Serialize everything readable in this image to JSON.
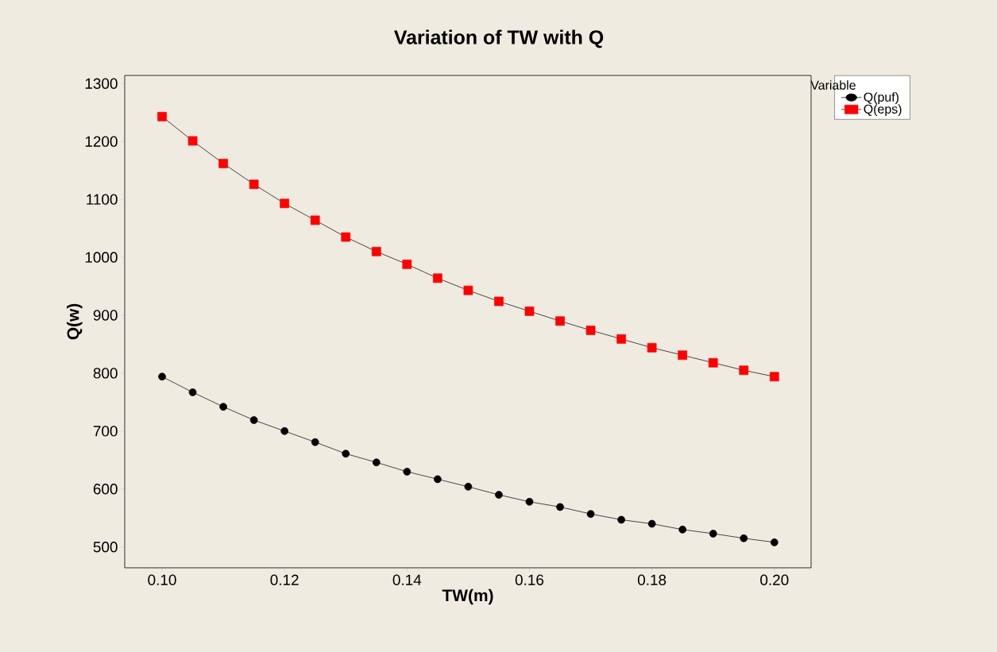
{
  "chart_data": {
    "type": "line",
    "title": "Variation of TW with Q",
    "xlabel": "TW(m)",
    "ylabel": "Q(w)",
    "legend_title": "Variable",
    "x": [
      0.1,
      0.105,
      0.11,
      0.115,
      0.12,
      0.125,
      0.13,
      0.135,
      0.14,
      0.145,
      0.15,
      0.155,
      0.16,
      0.165,
      0.17,
      0.175,
      0.18,
      0.185,
      0.19,
      0.195,
      0.2
    ],
    "series": [
      {
        "name": "Q(puf)",
        "color": "#000000",
        "marker": "circle",
        "values": [
          794,
          767,
          742,
          719,
          700,
          681,
          661,
          646,
          630,
          617,
          604,
          590,
          578,
          569,
          557,
          547,
          540,
          530,
          523,
          515,
          508
        ]
      },
      {
        "name": "Q(eps)",
        "color": "#ff0000",
        "marker": "square",
        "values": [
          1243,
          1201,
          1162,
          1126,
          1093,
          1064,
          1035,
          1010,
          988,
          964,
          943,
          924,
          907,
          890,
          874,
          859,
          844,
          831,
          818,
          805,
          794
        ]
      }
    ],
    "xlim": [
      0.0939,
      0.206
    ],
    "ylim": [
      464,
      1314
    ],
    "xticks": [
      {
        "value": 0.1,
        "label": "0.10"
      },
      {
        "value": 0.12,
        "label": "0.12"
      },
      {
        "value": 0.14,
        "label": "0.14"
      },
      {
        "value": 0.16,
        "label": "0.16"
      },
      {
        "value": 0.18,
        "label": "0.18"
      },
      {
        "value": 0.2,
        "label": "0.20"
      }
    ],
    "yticks": [
      500,
      600,
      700,
      800,
      900,
      1000,
      1100,
      1200,
      1300
    ],
    "grid": false,
    "legend": "top right",
    "line_style": "solid"
  }
}
